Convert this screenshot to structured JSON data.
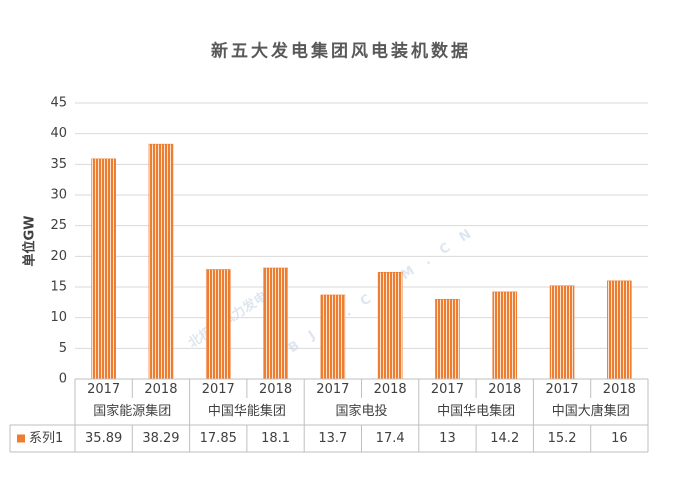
{
  "chart_data": {
    "type": "bar",
    "title": "新五大发电集团风电装机数据",
    "y_label": "单位GW",
    "categories": [
      "2017",
      "2018",
      "2017",
      "2018",
      "2017",
      "2018",
      "2017",
      "2018",
      "2017",
      "2018"
    ],
    "groups": [
      "国家能源集团",
      "中国华能集团",
      "国家电投",
      "中国华电集团",
      "中国大唐集团"
    ],
    "series": [
      {
        "name": "系列1",
        "color": "#ed7d31",
        "values": [
          35.89,
          38.29,
          17.85,
          18.1,
          13.7,
          17.4,
          13,
          14.2,
          15.2,
          16
        ]
      }
    ],
    "ylim": [
      0,
      45
    ],
    "yticks": [
      0,
      5,
      10,
      15,
      20,
      25,
      30,
      35,
      40,
      45
    ],
    "grid": true,
    "data_table": true,
    "watermark": [
      "北极星风力发电网",
      "BJX.COM.CN"
    ]
  }
}
